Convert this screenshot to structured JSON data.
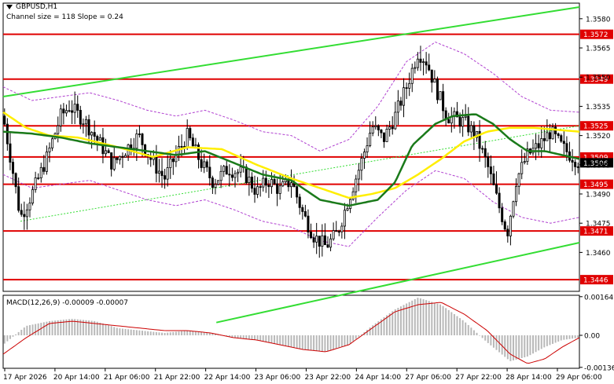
{
  "header": {
    "symbol": "GBPUSD,H1",
    "channel_info": "Channel size = 118 Slope = 0.24",
    "macd_label": "MACD(12,26,9) -0.00009 -0.00007"
  },
  "colors": {
    "background": "#ffffff",
    "candle": "#000000",
    "level_line": "#e00000",
    "level_tag": "#e00000",
    "channel": "#33dd33",
    "ma_slow": "#1a7a1a",
    "ma_fast": "#ffee00",
    "envelope": "#b040d0",
    "macd_hist": "#b8b8b8",
    "macd_signal": "#cc0000",
    "current_price_tag": "#000000"
  },
  "chart_data": {
    "type": "candlestick",
    "title": "GBPUSD,H1",
    "ylim": [
      1.344,
      1.3588
    ],
    "y_ticks": [
      1.358,
      1.3565,
      1.355,
      1.3535,
      1.352,
      1.3505,
      1.349,
      1.3475,
      1.346
    ],
    "x_labels": [
      "17 Apr 2026",
      "20 Apr 14:00",
      "21 Apr 06:00",
      "21 Apr 22:00",
      "22 Apr 14:00",
      "23 Apr 06:00",
      "23 Apr 22:00",
      "24 Apr 14:00",
      "27 Apr 06:00",
      "27 Apr 22:00",
      "28 Apr 14:00",
      "29 Apr 06:00"
    ],
    "levels": [
      {
        "label": "1.3572",
        "value": 1.3572
      },
      {
        "label": "1.3549",
        "value": 1.3549
      },
      {
        "label": "1.3525",
        "value": 1.3525
      },
      {
        "label": "1.3509",
        "value": 1.3509
      },
      {
        "label": "1.3495",
        "value": 1.3495
      },
      {
        "label": "1.3471",
        "value": 1.3471
      },
      {
        "label": "1.3446",
        "value": 1.3446
      }
    ],
    "current_price": {
      "label": "1.3506",
      "value": 1.3506
    },
    "channel": {
      "upper": [
        [
          0,
          1.354
        ],
        [
          1,
          1.3586
        ]
      ],
      "lower": [
        [
          0.37,
          1.3424
        ],
        [
          1,
          1.3465
        ]
      ]
    },
    "price_path": [
      [
        0,
        1.353
      ],
      [
        0.015,
        1.3505
      ],
      [
        0.03,
        1.3478
      ],
      [
        0.05,
        1.349
      ],
      [
        0.075,
        1.3508
      ],
      [
        0.1,
        1.353
      ],
      [
        0.115,
        1.3535
      ],
      [
        0.14,
        1.3528
      ],
      [
        0.17,
        1.3515
      ],
      [
        0.19,
        1.3505
      ],
      [
        0.21,
        1.3512
      ],
      [
        0.235,
        1.352
      ],
      [
        0.26,
        1.3506
      ],
      [
        0.28,
        1.3498
      ],
      [
        0.3,
        1.351
      ],
      [
        0.32,
        1.352
      ],
      [
        0.345,
        1.3505
      ],
      [
        0.365,
        1.3496
      ],
      [
        0.39,
        1.3503
      ],
      [
        0.42,
        1.35
      ],
      [
        0.44,
        1.3491
      ],
      [
        0.46,
        1.3497
      ],
      [
        0.48,
        1.3492
      ],
      [
        0.5,
        1.3497
      ],
      [
        0.52,
        1.348
      ],
      [
        0.54,
        1.3468
      ],
      [
        0.56,
        1.3463
      ],
      [
        0.58,
        1.347
      ],
      [
        0.6,
        1.3488
      ],
      [
        0.62,
        1.3505
      ],
      [
        0.64,
        1.3525
      ],
      [
        0.66,
        1.3518
      ],
      [
        0.68,
        1.353
      ],
      [
        0.7,
        1.3545
      ],
      [
        0.72,
        1.3563
      ],
      [
        0.735,
        1.3558
      ],
      [
        0.75,
        1.3545
      ],
      [
        0.77,
        1.353
      ],
      [
        0.8,
        1.3527
      ],
      [
        0.82,
        1.352
      ],
      [
        0.84,
        1.3505
      ],
      [
        0.86,
        1.3484
      ],
      [
        0.875,
        1.347
      ],
      [
        0.89,
        1.3497
      ],
      [
        0.91,
        1.351
      ],
      [
        0.93,
        1.3515
      ],
      [
        0.95,
        1.3522
      ],
      [
        0.97,
        1.3514
      ],
      [
        1,
        1.3506
      ]
    ],
    "ma_slow": [
      [
        0,
        1.3522
      ],
      [
        0.05,
        1.3521
      ],
      [
        0.1,
        1.3519
      ],
      [
        0.15,
        1.3516
      ],
      [
        0.2,
        1.3514
      ],
      [
        0.25,
        1.3512
      ],
      [
        0.3,
        1.351
      ],
      [
        0.35,
        1.3512
      ],
      [
        0.4,
        1.3506
      ],
      [
        0.45,
        1.35
      ],
      [
        0.5,
        1.3497
      ],
      [
        0.55,
        1.3487
      ],
      [
        0.6,
        1.3484
      ],
      [
        0.65,
        1.3487
      ],
      [
        0.68,
        1.3496
      ],
      [
        0.71,
        1.3515
      ],
      [
        0.75,
        1.3526
      ],
      [
        0.78,
        1.353
      ],
      [
        0.82,
        1.3531
      ],
      [
        0.85,
        1.3526
      ],
      [
        0.88,
        1.3518
      ],
      [
        0.91,
        1.3512
      ],
      [
        0.94,
        1.3512
      ],
      [
        0.97,
        1.351
      ],
      [
        1,
        1.3508
      ]
    ],
    "ma_fast": [
      [
        0,
        1.3532
      ],
      [
        0.04,
        1.3524
      ],
      [
        0.08,
        1.352
      ],
      [
        0.13,
        1.3519
      ],
      [
        0.2,
        1.3514
      ],
      [
        0.26,
        1.3509
      ],
      [
        0.32,
        1.3514
      ],
      [
        0.38,
        1.3513
      ],
      [
        0.44,
        1.3505
      ],
      [
        0.5,
        1.3498
      ],
      [
        0.56,
        1.3492
      ],
      [
        0.6,
        1.3488
      ],
      [
        0.64,
        1.349
      ],
      [
        0.68,
        1.3493
      ],
      [
        0.72,
        1.35
      ],
      [
        0.76,
        1.3508
      ],
      [
        0.8,
        1.3517
      ],
      [
        0.84,
        1.3522
      ],
      [
        0.88,
        1.3524
      ],
      [
        0.92,
        1.3524
      ],
      [
        0.96,
        1.3523
      ],
      [
        1,
        1.3522
      ]
    ],
    "envelope_upper": [
      [
        0,
        1.3545
      ],
      [
        0.05,
        1.3538
      ],
      [
        0.1,
        1.354
      ],
      [
        0.15,
        1.3542
      ],
      [
        0.2,
        1.3538
      ],
      [
        0.25,
        1.3533
      ],
      [
        0.3,
        1.353
      ],
      [
        0.35,
        1.3533
      ],
      [
        0.4,
        1.3528
      ],
      [
        0.45,
        1.3522
      ],
      [
        0.5,
        1.352
      ],
      [
        0.55,
        1.3512
      ],
      [
        0.6,
        1.3518
      ],
      [
        0.65,
        1.3535
      ],
      [
        0.7,
        1.3558
      ],
      [
        0.75,
        1.3568
      ],
      [
        0.8,
        1.3562
      ],
      [
        0.85,
        1.3552
      ],
      [
        0.9,
        1.354
      ],
      [
        0.95,
        1.3533
      ],
      [
        1,
        1.3532
      ]
    ],
    "envelope_lower": [
      [
        0,
        1.35
      ],
      [
        0.05,
        1.3493
      ],
      [
        0.1,
        1.3495
      ],
      [
        0.15,
        1.3497
      ],
      [
        0.2,
        1.3492
      ],
      [
        0.25,
        1.3487
      ],
      [
        0.3,
        1.3484
      ],
      [
        0.35,
        1.3487
      ],
      [
        0.4,
        1.3482
      ],
      [
        0.45,
        1.3476
      ],
      [
        0.5,
        1.3473
      ],
      [
        0.55,
        1.3466
      ],
      [
        0.6,
        1.3463
      ],
      [
        0.65,
        1.3478
      ],
      [
        0.7,
        1.3492
      ],
      [
        0.75,
        1.3502
      ],
      [
        0.8,
        1.3498
      ],
      [
        0.85,
        1.3486
      ],
      [
        0.9,
        1.3478
      ],
      [
        0.95,
        1.3475
      ],
      [
        1,
        1.3478
      ]
    ],
    "macd": {
      "ylim": [
        -0.0014,
        0.0017
      ],
      "y_ticks": [
        0.00164,
        0.0,
        -0.00136
      ],
      "histogram": [
        [
          0,
          -0.0004
        ],
        [
          0.04,
          0.0004
        ],
        [
          0.08,
          0.0006
        ],
        [
          0.12,
          0.0007
        ],
        [
          0.16,
          0.0006
        ],
        [
          0.2,
          0.0003
        ],
        [
          0.24,
          0.0002
        ],
        [
          0.28,
          0.0001
        ],
        [
          0.32,
          0.0002
        ],
        [
          0.36,
          0.0001
        ],
        [
          0.4,
          -0.0001
        ],
        [
          0.44,
          -0.0002
        ],
        [
          0.48,
          -0.0004
        ],
        [
          0.52,
          -0.0006
        ],
        [
          0.56,
          -0.0007
        ],
        [
          0.6,
          -0.0004
        ],
        [
          0.64,
          0.0004
        ],
        [
          0.68,
          0.0011
        ],
        [
          0.72,
          0.0016
        ],
        [
          0.76,
          0.0013
        ],
        [
          0.8,
          0.0006
        ],
        [
          0.84,
          -0.0003
        ],
        [
          0.88,
          -0.0011
        ],
        [
          0.91,
          -0.0009
        ],
        [
          0.94,
          -0.0005
        ],
        [
          0.97,
          -0.0002
        ],
        [
          1,
          -0.0001
        ]
      ],
      "signal": [
        [
          0,
          -0.0008
        ],
        [
          0.04,
          -0.0001
        ],
        [
          0.08,
          0.0005
        ],
        [
          0.12,
          0.0006
        ],
        [
          0.16,
          0.0005
        ],
        [
          0.2,
          0.0004
        ],
        [
          0.24,
          0.0003
        ],
        [
          0.28,
          0.0002
        ],
        [
          0.32,
          0.0002
        ],
        [
          0.36,
          0.0001
        ],
        [
          0.4,
          -0.0001
        ],
        [
          0.44,
          -0.0002
        ],
        [
          0.48,
          -0.0004
        ],
        [
          0.52,
          -0.0006
        ],
        [
          0.56,
          -0.0007
        ],
        [
          0.6,
          -0.0004
        ],
        [
          0.64,
          0.0003
        ],
        [
          0.68,
          0.001
        ],
        [
          0.72,
          0.0013
        ],
        [
          0.76,
          0.0014
        ],
        [
          0.8,
          0.0009
        ],
        [
          0.84,
          0.0002
        ],
        [
          0.88,
          -0.0008
        ],
        [
          0.91,
          -0.0012
        ],
        [
          0.94,
          -0.001
        ],
        [
          0.97,
          -0.0005
        ],
        [
          1,
          -0.0001
        ]
      ]
    }
  }
}
